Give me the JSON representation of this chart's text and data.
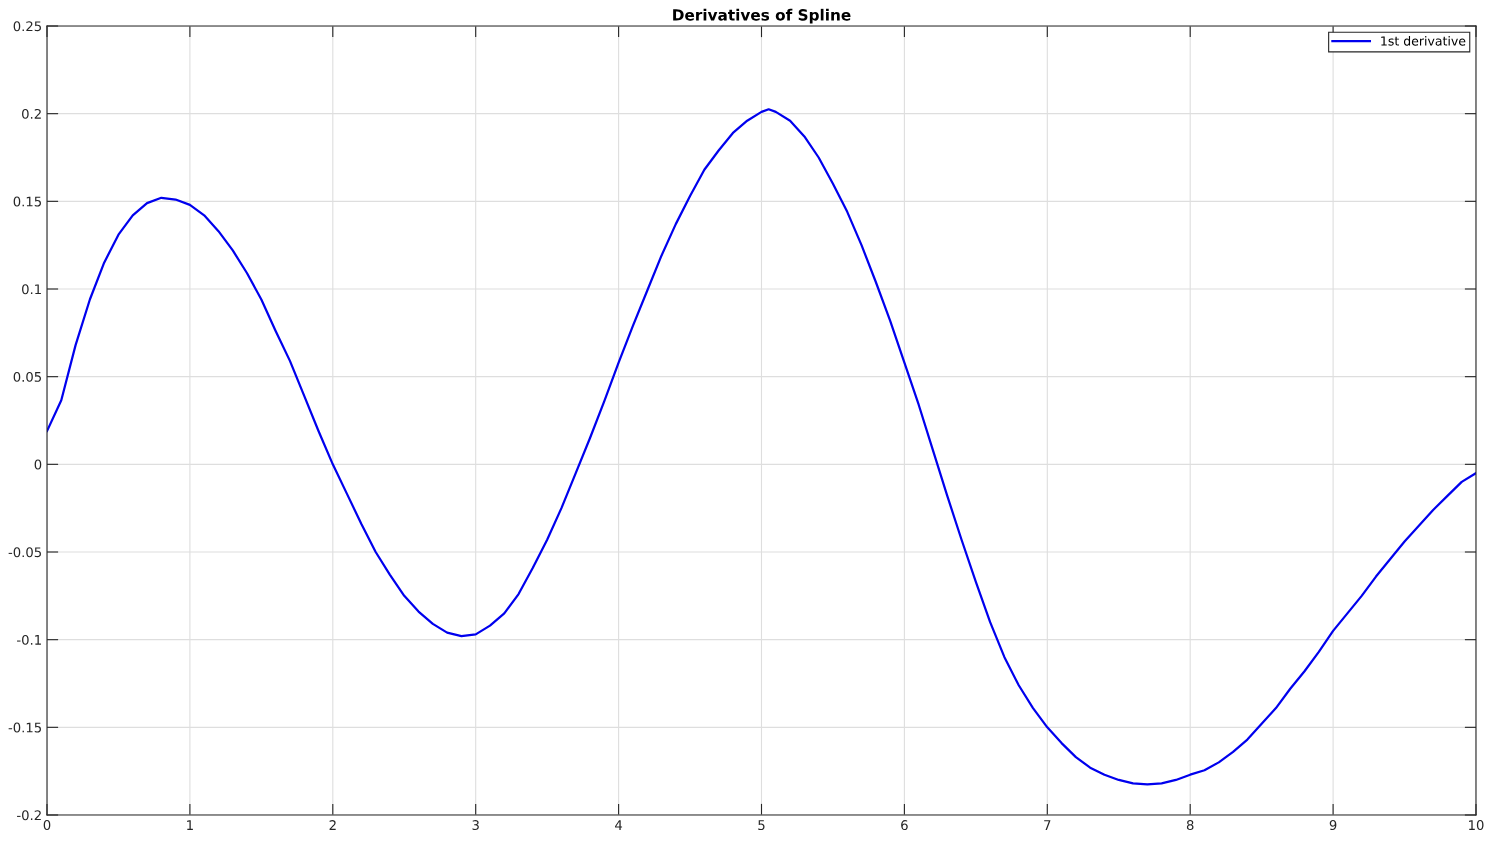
{
  "chart_data": {
    "type": "line",
    "title": "Derivatives of Spline",
    "xlim": [
      0,
      10
    ],
    "ylim": [
      -0.2,
      0.25
    ],
    "xticks": [
      0,
      1,
      2,
      3,
      4,
      5,
      6,
      7,
      8,
      9,
      10
    ],
    "yticks": [
      -0.2,
      -0.15,
      -0.1,
      -0.05,
      0,
      0.05,
      0.1,
      0.15,
      0.2,
      0.25
    ],
    "grid": true,
    "legend": "top right",
    "marker": "none",
    "line_style": "solid",
    "series": [
      {
        "name": "1st derivative",
        "color": "#0000ee",
        "x": [
          0,
          0.1,
          0.2,
          0.3,
          0.4,
          0.5,
          0.6,
          0.7,
          0.8,
          0.9,
          1.0,
          1.1,
          1.2,
          1.3,
          1.4,
          1.5,
          1.6,
          1.7,
          1.8,
          1.9,
          2.0,
          2.1,
          2.2,
          2.3,
          2.4,
          2.5,
          2.6,
          2.7,
          2.8,
          2.9,
          3.0,
          3.1,
          3.2,
          3.3,
          3.4,
          3.5,
          3.6,
          3.7,
          3.8,
          3.9,
          4.0,
          4.1,
          4.2,
          4.3,
          4.4,
          4.5,
          4.6,
          4.7,
          4.8,
          4.9,
          5.0,
          5.05,
          5.1,
          5.2,
          5.3,
          5.4,
          5.5,
          5.6,
          5.7,
          5.8,
          5.9,
          6.0,
          6.1,
          6.2,
          6.3,
          6.4,
          6.5,
          6.6,
          6.7,
          6.8,
          6.9,
          7.0,
          7.1,
          7.2,
          7.3,
          7.4,
          7.5,
          7.6,
          7.7,
          7.8,
          7.9,
          8.0,
          8.1,
          8.2,
          8.3,
          8.4,
          8.5,
          8.6,
          8.7,
          8.8,
          8.9,
          9.0,
          9.1,
          9.2,
          9.3,
          9.4,
          9.5,
          9.6,
          9.7,
          9.8,
          9.9,
          10.0
        ],
        "values": [
          0.019,
          0.0365,
          0.068,
          0.094,
          0.115,
          0.131,
          0.142,
          0.149,
          0.152,
          0.151,
          0.148,
          0.142,
          0.133,
          0.122,
          0.109,
          0.094,
          0.076,
          0.059,
          0.039,
          0.019,
          0.0,
          -0.017,
          -0.034,
          -0.05,
          -0.063,
          -0.075,
          -0.084,
          -0.091,
          -0.096,
          -0.098,
          -0.097,
          -0.092,
          -0.085,
          -0.074,
          -0.059,
          -0.043,
          -0.025,
          -0.005,
          0.015,
          0.036,
          0.058,
          0.079,
          0.099,
          0.119,
          0.137,
          0.153,
          0.168,
          0.179,
          0.189,
          0.196,
          0.201,
          0.2025,
          0.201,
          0.196,
          0.187,
          0.175,
          0.16,
          0.144,
          0.125,
          0.104,
          0.082,
          0.058,
          0.034,
          0.008,
          -0.018,
          -0.043,
          -0.067,
          -0.09,
          -0.11,
          -0.126,
          -0.139,
          -0.15,
          -0.159,
          -0.167,
          -0.173,
          -0.177,
          -0.18,
          -0.182,
          -0.1825,
          -0.182,
          -0.18,
          -0.177,
          -0.1745,
          -0.17,
          -0.164,
          -0.157,
          -0.148,
          -0.139,
          -0.128,
          -0.118,
          -0.107,
          -0.095,
          -0.085,
          -0.075,
          -0.064,
          -0.054,
          -0.044,
          -0.035,
          -0.026,
          -0.018,
          -0.01,
          -0.005
        ]
      }
    ]
  }
}
